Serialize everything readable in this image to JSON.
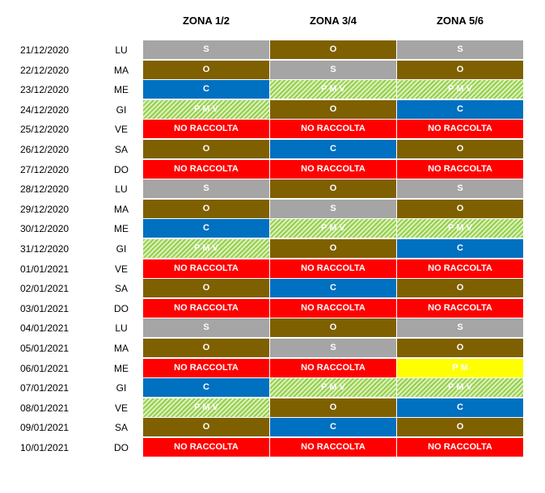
{
  "headers": [
    "ZONA 1/2",
    "ZONA 3/4",
    "ZONA 5/6"
  ],
  "legend_colors": {
    "S": "#a5a5a5",
    "O": "#7f6000",
    "C": "#0070c0",
    "P M V": "#92d050",
    "NO RACCOLTA": "#ff0000",
    "P M": "#ffff00"
  },
  "rows": [
    {
      "date": "21/12/2020",
      "day": "LU",
      "zones": [
        "S",
        "O",
        "S"
      ]
    },
    {
      "date": "22/12/2020",
      "day": "MA",
      "zones": [
        "O",
        "S",
        "O"
      ]
    },
    {
      "date": "23/12/2020",
      "day": "ME",
      "zones": [
        "C",
        "P M V",
        "P M V"
      ]
    },
    {
      "date": "24/12/2020",
      "day": "GI",
      "zones": [
        "P M V",
        "O",
        "C"
      ]
    },
    {
      "date": "25/12/2020",
      "day": "VE",
      "zones": [
        "NO RACCOLTA",
        "NO RACCOLTA",
        "NO RACCOLTA"
      ]
    },
    {
      "date": "26/12/2020",
      "day": "SA",
      "zones": [
        "O",
        "C",
        "O"
      ]
    },
    {
      "date": "27/12/2020",
      "day": "DO",
      "zones": [
        "NO RACCOLTA",
        "NO RACCOLTA",
        "NO RACCOLTA"
      ]
    },
    {
      "date": "28/12/2020",
      "day": "LU",
      "zones": [
        "S",
        "O",
        "S"
      ]
    },
    {
      "date": "29/12/2020",
      "day": "MA",
      "zones": [
        "O",
        "S",
        "O"
      ]
    },
    {
      "date": "30/12/2020",
      "day": "ME",
      "zones": [
        "C",
        "P M V",
        "P M V"
      ]
    },
    {
      "date": "31/12/2020",
      "day": "GI",
      "zones": [
        "P M V",
        "O",
        "C"
      ]
    },
    {
      "date": "01/01/2021",
      "day": "VE",
      "zones": [
        "NO RACCOLTA",
        "NO RACCOLTA",
        "NO RACCOLTA"
      ]
    },
    {
      "date": "02/01/2021",
      "day": "SA",
      "zones": [
        "O",
        "C",
        "O"
      ]
    },
    {
      "date": "03/01/2021",
      "day": "DO",
      "zones": [
        "NO RACCOLTA",
        "NO RACCOLTA",
        "NO RACCOLTA"
      ]
    },
    {
      "date": "04/01/2021",
      "day": "LU",
      "zones": [
        "S",
        "O",
        "S"
      ]
    },
    {
      "date": "05/01/2021",
      "day": "MA",
      "zones": [
        "O",
        "S",
        "O"
      ]
    },
    {
      "date": "06/01/2021",
      "day": "ME",
      "zones": [
        "NO RACCOLTA",
        "NO RACCOLTA",
        "P M"
      ]
    },
    {
      "date": "07/01/2021",
      "day": "GI",
      "zones": [
        "C",
        "P M V",
        "P M V"
      ]
    },
    {
      "date": "08/01/2021",
      "day": "VE",
      "zones": [
        "P M V",
        "O",
        "C"
      ]
    },
    {
      "date": "09/01/2021",
      "day": "SA",
      "zones": [
        "O",
        "C",
        "O"
      ]
    },
    {
      "date": "10/01/2021",
      "day": "DO",
      "zones": [
        "NO RACCOLTA",
        "NO RACCOLTA",
        "NO RACCOLTA"
      ]
    }
  ]
}
